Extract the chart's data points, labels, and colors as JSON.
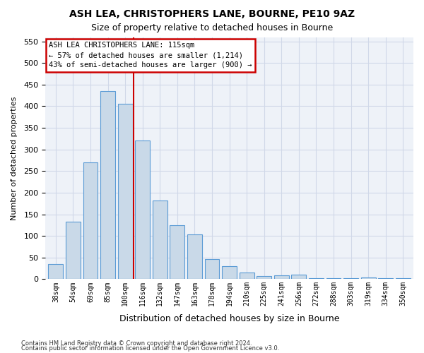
{
  "title": "ASH LEA, CHRISTOPHERS LANE, BOURNE, PE10 9AZ",
  "subtitle": "Size of property relative to detached houses in Bourne",
  "xlabel": "Distribution of detached houses by size in Bourne",
  "ylabel": "Number of detached properties",
  "categories": [
    "38sqm",
    "54sqm",
    "69sqm",
    "85sqm",
    "100sqm",
    "116sqm",
    "132sqm",
    "147sqm",
    "163sqm",
    "178sqm",
    "194sqm",
    "210sqm",
    "225sqm",
    "241sqm",
    "256sqm",
    "272sqm",
    "288sqm",
    "303sqm",
    "319sqm",
    "334sqm",
    "350sqm"
  ],
  "values": [
    35,
    133,
    270,
    435,
    405,
    320,
    182,
    125,
    104,
    46,
    30,
    16,
    7,
    8,
    10,
    2,
    2,
    2,
    4,
    2,
    2
  ],
  "bar_color": "#c9d9e8",
  "bar_edge_color": "#5b9bd5",
  "grid_color": "#d0d8e8",
  "bg_color": "#eef2f8",
  "red_line_x": 4.5,
  "annotation_text": "ASH LEA CHRISTOPHERS LANE: 115sqm\n← 57% of detached houses are smaller (1,214)\n43% of semi-detached houses are larger (900) →",
  "annotation_box_edge_color": "#cc0000",
  "ylim": [
    0,
    560
  ],
  "yticks": [
    0,
    50,
    100,
    150,
    200,
    250,
    300,
    350,
    400,
    450,
    500,
    550
  ],
  "footer_line1": "Contains HM Land Registry data © Crown copyright and database right 2024.",
  "footer_line2": "Contains public sector information licensed under the Open Government Licence v3.0."
}
